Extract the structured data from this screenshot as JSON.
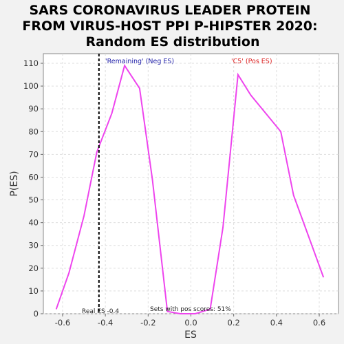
{
  "chart_data": {
    "type": "line",
    "title_lines": [
      "SARS CORONAVIRUS LEADER PROTEIN",
      "FROM VIRUS-HOST PPI P-HIPSTER 2020:",
      "Random ES distribution"
    ],
    "xlabel": "ES",
    "ylabel": "P(ES)",
    "xlim": [
      -0.69,
      0.69
    ],
    "ylim": [
      0,
      110
    ],
    "x_ticks": [
      "-0.6",
      "-0.4",
      "-0.2",
      "0.0",
      "0.2",
      "0.4",
      "0.6"
    ],
    "x_tick_values": [
      -0.6,
      -0.4,
      -0.2,
      0.0,
      0.2,
      0.4,
      0.6
    ],
    "y_ticks": [
      "0",
      "10",
      "20",
      "30",
      "40",
      "50",
      "60",
      "70",
      "80",
      "90",
      "100",
      "110"
    ],
    "y_tick_values": [
      0,
      10,
      20,
      30,
      40,
      50,
      60,
      70,
      80,
      90,
      100,
      110
    ],
    "grid": true,
    "series": [
      {
        "color": "#ee44ee",
        "x": [
          -0.63,
          -0.57,
          -0.5,
          -0.44,
          -0.37,
          -0.31,
          -0.24,
          -0.18,
          -0.11,
          -0.05,
          0.02,
          0.09,
          0.15,
          0.22,
          0.28,
          0.35,
          0.42,
          0.48,
          0.55,
          0.62
        ],
        "y": [
          2,
          18,
          43,
          71,
          88,
          109,
          99,
          59,
          1,
          0,
          0,
          2,
          38,
          105,
          96,
          88,
          80,
          52,
          34,
          16
        ]
      }
    ],
    "real_es": {
      "value": -0.43,
      "label": "Real ES -0.4"
    },
    "annotations": {
      "neg_label": "'Remaining' (Neg ES)",
      "neg_color": "#2222aa",
      "pos_label": "'C5' (Pos ES)",
      "pos_color": "#dd2222",
      "pos_scores_label": "Sets with pos scores: 51%"
    }
  }
}
